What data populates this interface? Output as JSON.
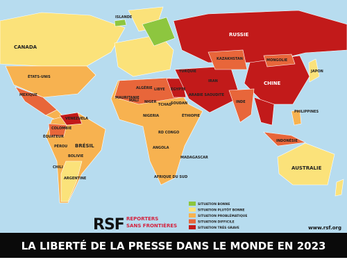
{
  "title": "LA LIBERTÉ DE LA PRESSE DANS LE MONDE EN 2023",
  "logo": {
    "mark": "RSF",
    "line1": "REPORTERS",
    "line2": "SANS FRONTIÈRES"
  },
  "url": "www.rsf.org",
  "legend": [
    {
      "label": "SITUATION BONNE",
      "color": "#8dc63f"
    },
    {
      "label": "SITUATION PLUTÔT BONNE",
      "color": "#fbe27a"
    },
    {
      "label": "SITUATION PROBLÉMATIQUE",
      "color": "#f7b250"
    },
    {
      "label": "SITUATION DIFFICILE",
      "color": "#e8663a"
    },
    {
      "label": "SITUATION TRÈS GRAVE",
      "color": "#c21a1a"
    }
  ],
  "countries": [
    "CANADA",
    "ÉTATS-UNIS",
    "MEXIQUE",
    "BRÉSIL",
    "ARGENTINE",
    "PÉROU",
    "CHILI",
    "VENEZUELA",
    "COLOMBIE",
    "BOLIVIE",
    "ÉQUATEUR",
    "RUSSIE",
    "CHINE",
    "KAZAKHSTAN",
    "MONGOLIE",
    "INDE",
    "AUSTRALIE",
    "ISLANDE",
    "ALGÉRIE",
    "LIBYE",
    "ÉGYPTE",
    "NIGERIA",
    "SOUDAN",
    "ÉTHIOPIE",
    "RD CONGO",
    "ANGOLA",
    "AFRIQUE DU SUD",
    "MADAGASCAR",
    "IRAN",
    "ARABIE SAOUDITE",
    "INDONÉSIE",
    "JAPON",
    "PHILIPPINES",
    "MALI",
    "NIGER",
    "TCHAD",
    "MAURITANIE",
    "TURQUIE"
  ]
}
